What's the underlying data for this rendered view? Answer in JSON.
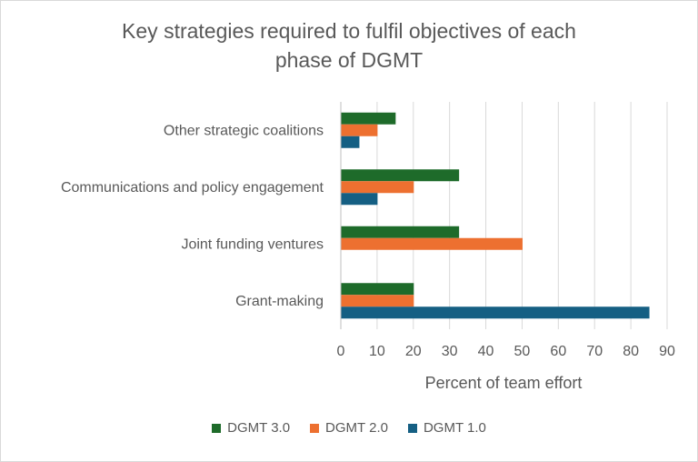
{
  "chart_data": {
    "type": "bar",
    "orientation": "horizontal",
    "title_lines": [
      "Key strategies required to fulfil objectives of each",
      "phase of DGMT"
    ],
    "xlabel": "Percent of team effort",
    "ylabel": "",
    "xlim": [
      0,
      90
    ],
    "x_ticks": [
      0,
      10,
      20,
      30,
      40,
      50,
      60,
      70,
      80,
      90
    ],
    "grid": true,
    "legend_position": "bottom",
    "categories": [
      "Other strategic coalitions",
      "Communications and policy engagement",
      "Joint funding ventures",
      "Grant-making"
    ],
    "series": [
      {
        "name": "DGMT 3.0",
        "color": "#1e6b2a",
        "values": [
          15,
          32.5,
          32.5,
          20
        ]
      },
      {
        "name": "DGMT 2.0",
        "color": "#ed7030",
        "values": [
          10,
          20,
          50,
          20
        ]
      },
      {
        "name": "DGMT 1.0",
        "color": "#155f83",
        "values": [
          5,
          10,
          0,
          85
        ]
      }
    ]
  }
}
